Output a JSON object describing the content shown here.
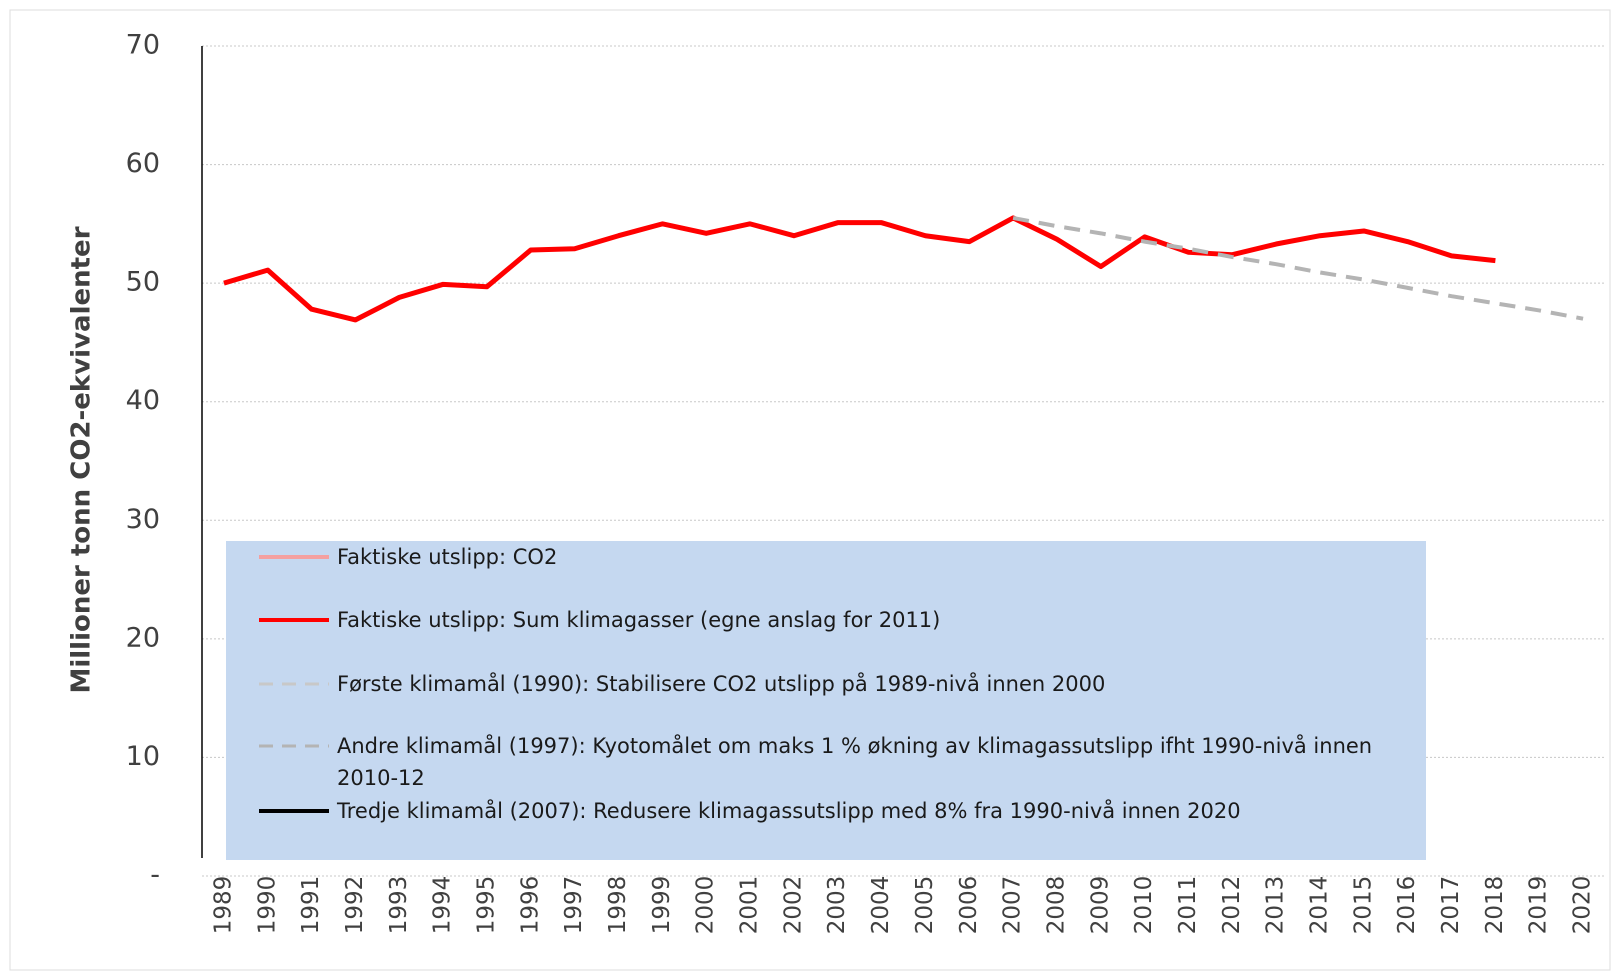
{
  "chart_data": {
    "type": "line",
    "y_label": "Millioner tonn CO2-ekvivalenter",
    "categories": [
      "1989",
      "1990",
      "1991",
      "1992",
      "1993",
      "1994",
      "1995",
      "1996",
      "1997",
      "1998",
      "1999",
      "2000",
      "2001",
      "2002",
      "2003",
      "2004",
      "2005",
      "2006",
      "2007",
      "2008",
      "2009",
      "2010",
      "2011",
      "2012",
      "2013",
      "2014",
      "2015",
      "2016",
      "2017",
      "2018",
      "2019",
      "2020"
    ],
    "ylim": [
      0,
      70
    ],
    "yticks": [
      {
        "value": 0,
        "label": "-"
      },
      10,
      20,
      30,
      40,
      50,
      60,
      70
    ],
    "grid": true,
    "series": [
      {
        "name": "Faktiske utslipp: CO2",
        "color": "#f4a0a0",
        "dash": false,
        "values": [
          null,
          null,
          null,
          null,
          null,
          null,
          null,
          null,
          null,
          null,
          null,
          null,
          null,
          null,
          null,
          null,
          null,
          null,
          null,
          null,
          null,
          null,
          null,
          null,
          null,
          null,
          null,
          null,
          null,
          null,
          null,
          null
        ]
      },
      {
        "name": "Faktiske utslipp: Sum klimagasser  (egne anslag for 2011)",
        "color": "#ff0000",
        "dash": false,
        "values": [
          50,
          51.1,
          47.8,
          46.9,
          48.8,
          49.9,
          49.7,
          52.8,
          52.9,
          54,
          55,
          54.2,
          55,
          54,
          55.1,
          55.1,
          54,
          53.5,
          55.5,
          53.7,
          51.4,
          53.9,
          52.6,
          52.4,
          53.3,
          54,
          54.4,
          53.5,
          52.3,
          51.9,
          null,
          null
        ]
      },
      {
        "name": "Første klimamål  (1990): Stabilisere CO2 utslipp på 1989-nivå innen 2000",
        "color": "#c8c8c8",
        "dash": true,
        "values": [
          null,
          null,
          null,
          null,
          null,
          null,
          null,
          null,
          null,
          null,
          null,
          null,
          null,
          null,
          null,
          null,
          null,
          null,
          null,
          null,
          null,
          null,
          null,
          null,
          null,
          null,
          null,
          null,
          null,
          null,
          null,
          null
        ]
      },
      {
        "name": "Andre klimamål (1997): Kyotomålet  om maks  1 % økning av klimagassutslipp  ifht 1990-nivå innen 2010-12",
        "color": "#b4b4b4",
        "dash": true,
        "values": [
          null,
          null,
          null,
          null,
          null,
          null,
          null,
          null,
          null,
          null,
          null,
          null,
          null,
          null,
          null,
          null,
          null,
          null,
          55.5,
          54.8,
          54.2,
          53.5,
          52.9,
          52.2,
          51.6,
          50.9,
          50.3,
          49.6,
          48.9,
          48.3,
          47.7,
          47.0
        ]
      },
      {
        "name": "Tredje klimamål  (2007): Redusere klimagassutslipp  med 8% fra 1990-nivå innen 2020",
        "color": "#000000",
        "dash": false,
        "values": [
          null,
          null,
          null,
          null,
          null,
          null,
          null,
          null,
          null,
          null,
          null,
          null,
          null,
          null,
          null,
          null,
          null,
          null,
          null,
          null,
          null,
          null,
          null,
          null,
          null,
          null,
          null,
          null,
          null,
          null,
          null,
          null
        ]
      }
    ]
  }
}
